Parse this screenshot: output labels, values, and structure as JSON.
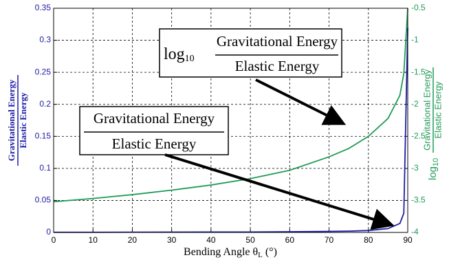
{
  "chart_data": {
    "type": "line",
    "x": [
      0,
      10,
      20,
      30,
      40,
      50,
      60,
      70,
      75,
      80,
      85,
      88,
      89,
      90
    ],
    "series": [
      {
        "color": "#1c1ca6",
        "values": [
          0.0003,
          0.0003,
          0.0004,
          0.0005,
          0.0006,
          0.0007,
          0.001,
          0.0016,
          0.002,
          0.003,
          0.006,
          0.014,
          0.03,
          0.32
        ]
      },
      {
        "color": "#1f9b55",
        "axis": "y2",
        "values": [
          -3.52,
          -3.47,
          -3.41,
          -3.34,
          -3.26,
          -3.16,
          -3.03,
          -2.82,
          -2.69,
          -2.5,
          -2.22,
          -1.86,
          -1.52,
          -0.5
        ]
      }
    ],
    "xlim": [
      0,
      90
    ],
    "xticks": [
      0,
      10,
      20,
      30,
      40,
      50,
      60,
      70,
      80,
      90
    ],
    "ylim": [
      0,
      0.35
    ],
    "yticks": [
      0,
      0.05,
      0.1,
      0.15,
      0.2,
      0.25,
      0.3,
      0.35
    ],
    "y2lim": [
      -4,
      -0.5
    ],
    "y2ticks": [
      -4,
      -3.5,
      -3,
      -2.5,
      -2,
      -1.5,
      -1,
      -0.5
    ],
    "grid": true,
    "xlabel": {
      "text": "Bending Angle θ",
      "subscript": "L",
      "unit": "(°)"
    },
    "ylabel": {
      "numerator": "Gravitational Energy",
      "denominator": "Elastic Energy"
    },
    "y2label": {
      "prefix": "log",
      "subscript": "10",
      "numerator": "Gravitational Energy",
      "denominator": "Elastic Energy"
    },
    "annotations": [
      {
        "prefix": "log",
        "subscript": "10",
        "numerator": "Gravitational Energy",
        "denominator": "Elastic Energy"
      },
      {
        "numerator": "Gravitational Energy",
        "denominator": "Elastic Energy"
      }
    ]
  }
}
